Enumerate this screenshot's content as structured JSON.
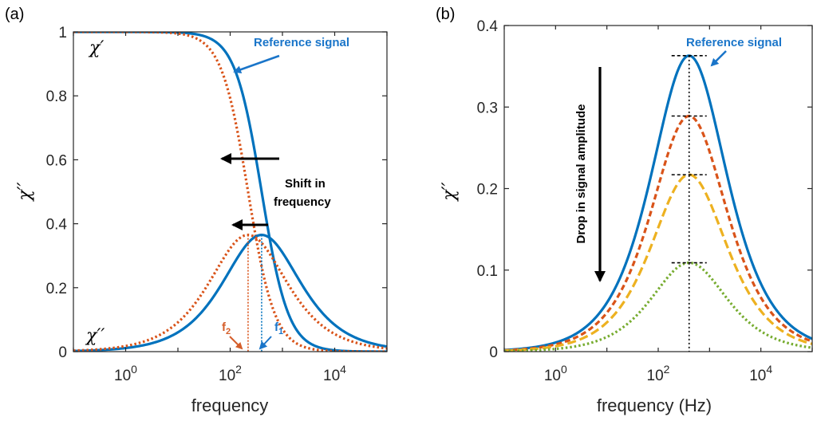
{
  "chart_data": [
    {
      "type": "line",
      "panel_label": "(a)",
      "xlabel": "frequency",
      "ylabel": "χ′′",
      "xscale": "log",
      "xlim": [
        0.1,
        100000
      ],
      "ylim": [
        0,
        1
      ],
      "xticks": [
        1,
        100,
        10000
      ],
      "xtick_labels": [
        {
          "base": "10",
          "exp": "0"
        },
        {
          "base": "10",
          "exp": "2"
        },
        {
          "base": "10",
          "exp": "4"
        }
      ],
      "yticks": [
        0,
        0.2,
        0.4,
        0.6,
        0.8,
        1
      ],
      "ytick_labels": [
        "0",
        "0.2",
        "0.4",
        "0.6",
        "0.8",
        "1"
      ],
      "grid": false,
      "series": [
        {
          "role": "chi-real-reference",
          "model": "debye-real",
          "peak_frequency": 400,
          "style": "solid",
          "color": "#0072bd"
        },
        {
          "role": "chi-real-shifted",
          "model": "debye-real",
          "peak_frequency": 220,
          "style": "dotted",
          "color": "#d95319"
        },
        {
          "role": "chi-imag-reference",
          "model": "cole-cole-imag",
          "peak_frequency": 400,
          "peak_value": 0.365,
          "style": "solid",
          "color": "#0072bd"
        },
        {
          "role": "chi-imag-shifted",
          "model": "cole-cole-imag",
          "peak_frequency": 220,
          "peak_value": 0.365,
          "style": "dotted",
          "color": "#d95319"
        }
      ],
      "annotations": {
        "chi_real_label": "χ′",
        "chi_imag_label": "χ′′",
        "reference_signal": "Reference signal",
        "shift_line1": "Shift in",
        "shift_line2": "frequency",
        "f1": {
          "main": "f",
          "sub": "1"
        },
        "f2": {
          "main": "f",
          "sub": "2"
        }
      }
    },
    {
      "type": "line",
      "panel_label": "(b)",
      "xlabel": "frequency (Hz)",
      "ylabel": "χ′′",
      "xscale": "log",
      "xlim": [
        0.1,
        100000
      ],
      "ylim": [
        0,
        0.4
      ],
      "xticks": [
        1,
        100,
        10000
      ],
      "xtick_labels": [
        {
          "base": "10",
          "exp": "0"
        },
        {
          "base": "10",
          "exp": "2"
        },
        {
          "base": "10",
          "exp": "4"
        }
      ],
      "yticks": [
        0,
        0.1,
        0.2,
        0.3,
        0.4
      ],
      "ytick_labels": [
        "0",
        "0.1",
        "0.2",
        "0.3",
        "0.4"
      ],
      "grid": false,
      "series": [
        {
          "peak_frequency": 400,
          "peak_value": 0.363,
          "style": "solid",
          "color": "#0072bd"
        },
        {
          "peak_frequency": 400,
          "peak_value": 0.289,
          "style": "dashed",
          "color": "#d95319"
        },
        {
          "peak_frequency": 400,
          "peak_value": 0.217,
          "style": "longdash",
          "color": "#edb120"
        },
        {
          "peak_frequency": 400,
          "peak_value": 0.109,
          "style": "dotted",
          "color": "#77ac30"
        }
      ],
      "annotations": {
        "reference_signal": "Reference signal",
        "drop_label": "Drop in signal amplitude"
      }
    }
  ],
  "colors": {
    "blue": "#0072bd",
    "orange": "#d95319",
    "yellow": "#edb120",
    "green": "#77ac30",
    "annotation_blue": "#1a75c9",
    "annotation_orange": "#d55e2a"
  }
}
